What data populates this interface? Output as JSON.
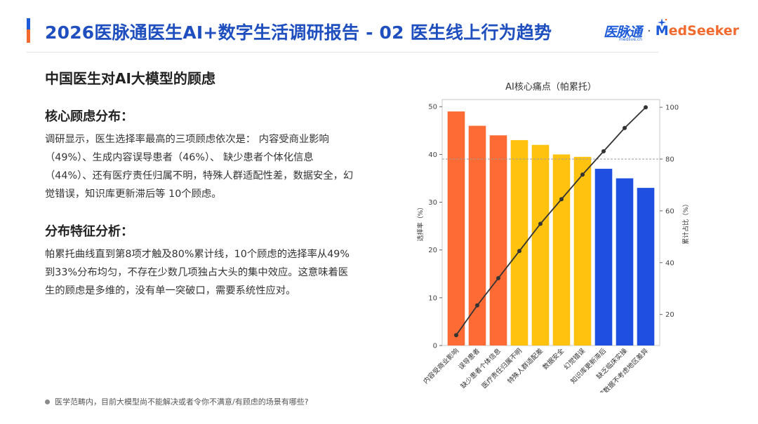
{
  "header": {
    "title": "2026医脉通医生AI+数字生活调研报告 - 02 医生线上行为趋势",
    "logo_medlive": "医脉通",
    "logo_medlive_sub": "medlive.cn",
    "logo_separator": "·",
    "logo_medseeker_m": "M",
    "logo_medseeker_rest": "edSeeker"
  },
  "content": {
    "section_title": "中国医生对AI大模型的顾虑",
    "heading1": "核心顾虑分布：",
    "para1": "调研显示，医生选择率最高的三项顾虑依次是： 内容受商业影响（49%）、生成内容误导患者（46%）、 缺少患者个体化信息（44%）、还有医疗责任归属不明，特殊人群适配性差，数据安全，幻觉错误，知识库更新滞后等 10个顾虑。",
    "heading2": "分布特征分析：",
    "para2": "帕累托曲线直到第8项才触及80%累计线，10个顾虑的选择率从49%到33%分布均匀，不存在少数几项独占大头的集中效应。这意味着医生的顾虑是多维的，没有单一突破口，需要系统性应对。"
  },
  "footnote": "医学范畴内，目前大模型尚不能解决或者令你不满意/有顾虑的场景有哪些?",
  "colors": {
    "accent_blue": "#1e5bd8",
    "accent_orange": "#f26a2e",
    "bar_orange": "#ff6b35",
    "bar_yellow": "#ffc20e",
    "bar_blue": "#1f4fe0",
    "line": "#333333"
  },
  "chart_data": {
    "type": "bar",
    "title": "AI核心痛点（帕累托）",
    "ylabel": "选择率（%）",
    "y2label": "累计占比（%）",
    "categories": [
      "内容受商业影响",
      "误导患者",
      "缺少患者个体信息",
      "医疗责任归属不明",
      "特殊人群适配差",
      "数据安全",
      "幻觉错误",
      "知识库更新滞后",
      "缺乏临床实操",
      "推荐数据不考虑地区差异"
    ],
    "series": [
      {
        "values": [
          49,
          46,
          44,
          43,
          42,
          40,
          39.5,
          37,
          35,
          33
        ],
        "axis": "left"
      },
      {
        "type": "line",
        "values": [
          12,
          23.5,
          34,
          44.5,
          55,
          64.5,
          74,
          83,
          92,
          100
        ],
        "axis": "right"
      }
    ],
    "bar_color_groups": [
      "orange",
      "orange",
      "orange",
      "yellow",
      "yellow",
      "yellow",
      "yellow",
      "blue",
      "blue",
      "blue"
    ],
    "ylim": [
      0,
      51.5
    ],
    "y2lim": [
      8,
      103
    ],
    "yticks": [
      0,
      10,
      20,
      30,
      40,
      50
    ],
    "y2ticks": [
      20,
      40,
      60,
      80,
      100
    ],
    "reference_line_y2": 80,
    "grid": false
  }
}
